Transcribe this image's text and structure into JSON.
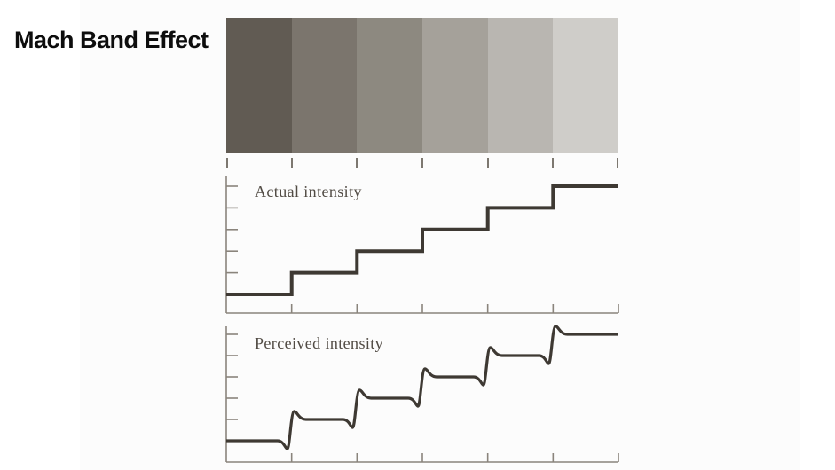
{
  "title": "Mach Band Effect",
  "colors": {
    "background": "#ffffff",
    "panel": "#fcfcfc",
    "title_text": "#0d0d0d",
    "axis": "#8a847c",
    "curve": "#3e3933",
    "label_text": "#514b44",
    "strip_tick": "#7d7870"
  },
  "strip": {
    "band_count": 6,
    "band_colors": [
      "#615b53",
      "#7b756d",
      "#8d8980",
      "#a5a19a",
      "#b9b6b1",
      "#cfcdc9"
    ]
  },
  "chart_data": [
    {
      "type": "line",
      "title": "Actual intensity",
      "style": "staircase",
      "x_boundaries": [
        0,
        1,
        2,
        3,
        4,
        5,
        6
      ],
      "levels": [
        1,
        2,
        3,
        4,
        5,
        6
      ],
      "xlabel": "",
      "ylabel": "",
      "grid": false,
      "note": "uniform step function; one flat level per gray band, rising at each band boundary"
    },
    {
      "type": "line",
      "title": "Perceived intensity",
      "style": "staircase-with-mach-bands",
      "x_boundaries": [
        0,
        1,
        2,
        3,
        4,
        5,
        6
      ],
      "levels": [
        1,
        2,
        3,
        4,
        5,
        6
      ],
      "undershoot": 0.38,
      "overshoot": 0.38,
      "xlabel": "",
      "ylabel": "",
      "grid": false,
      "note": "same staircase but with a dip (undershoot) just before each edge and a spike (overshoot) just after each edge"
    }
  ]
}
